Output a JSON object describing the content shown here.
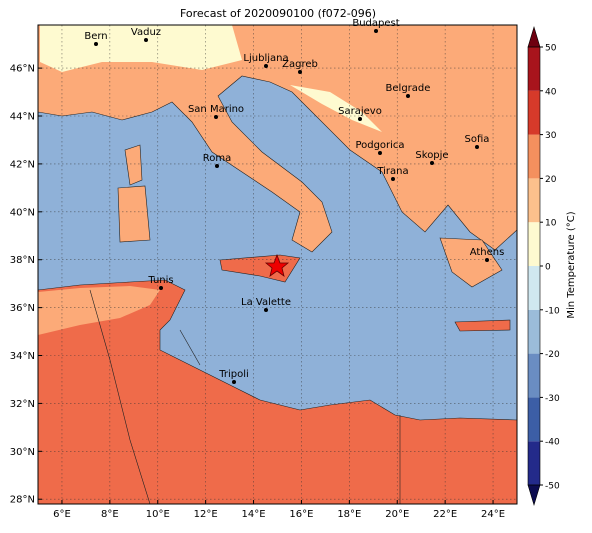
{
  "title": "Forecast of 2020090100 (f072-096)",
  "map": {
    "xlim": [
      5,
      25
    ],
    "ylim": [
      27.8,
      47.8
    ],
    "xticks": [
      {
        "value": 6,
        "label": "6°E"
      },
      {
        "value": 8,
        "label": "8°E"
      },
      {
        "value": 10,
        "label": "10°E"
      },
      {
        "value": 12,
        "label": "12°E"
      },
      {
        "value": 14,
        "label": "14°E"
      },
      {
        "value": 16,
        "label": "16°E"
      },
      {
        "value": 18,
        "label": "18°E"
      },
      {
        "value": 20,
        "label": "20°E"
      },
      {
        "value": 22,
        "label": "22°E"
      },
      {
        "value": 24,
        "label": "24°E"
      }
    ],
    "yticks": [
      {
        "value": 28,
        "label": "28°N"
      },
      {
        "value": 30,
        "label": "30°N"
      },
      {
        "value": 32,
        "label": "32°N"
      },
      {
        "value": 34,
        "label": "34°N"
      },
      {
        "value": 36,
        "label": "36°N"
      },
      {
        "value": 38,
        "label": "38°N"
      },
      {
        "value": 40,
        "label": "40°N"
      },
      {
        "value": 42,
        "label": "42°N"
      },
      {
        "value": 44,
        "label": "44°N"
      },
      {
        "value": 46,
        "label": "46°N"
      }
    ],
    "grid": true,
    "cities": [
      "Bern",
      "Vaduz",
      "Budapest",
      "Ljubljana",
      "Zagreb",
      "Belgrade",
      "Sarajevo",
      "San Marino",
      "Sofia",
      "Podgorica",
      "Skopje",
      "Roma",
      "Tirana",
      "Athens",
      "Tunis",
      "La Valette",
      "Tripoli"
    ]
  },
  "colorbar": {
    "label": "Min Temperature (°C)",
    "lim": [
      -50,
      50
    ],
    "ticks": [
      -50,
      -40,
      -30,
      -20,
      -10,
      0,
      10,
      20,
      30,
      40,
      50
    ],
    "colors": [
      "#232a8a",
      "#3c5ea6",
      "#6a8dc2",
      "#9bbcd9",
      "#d0e8f0",
      "#fefad0",
      "#fcc08c",
      "#f4905e",
      "#d63a2a",
      "#a8141c"
    ],
    "extend_colors": [
      "#0c0c50",
      "#6e0010"
    ]
  }
}
